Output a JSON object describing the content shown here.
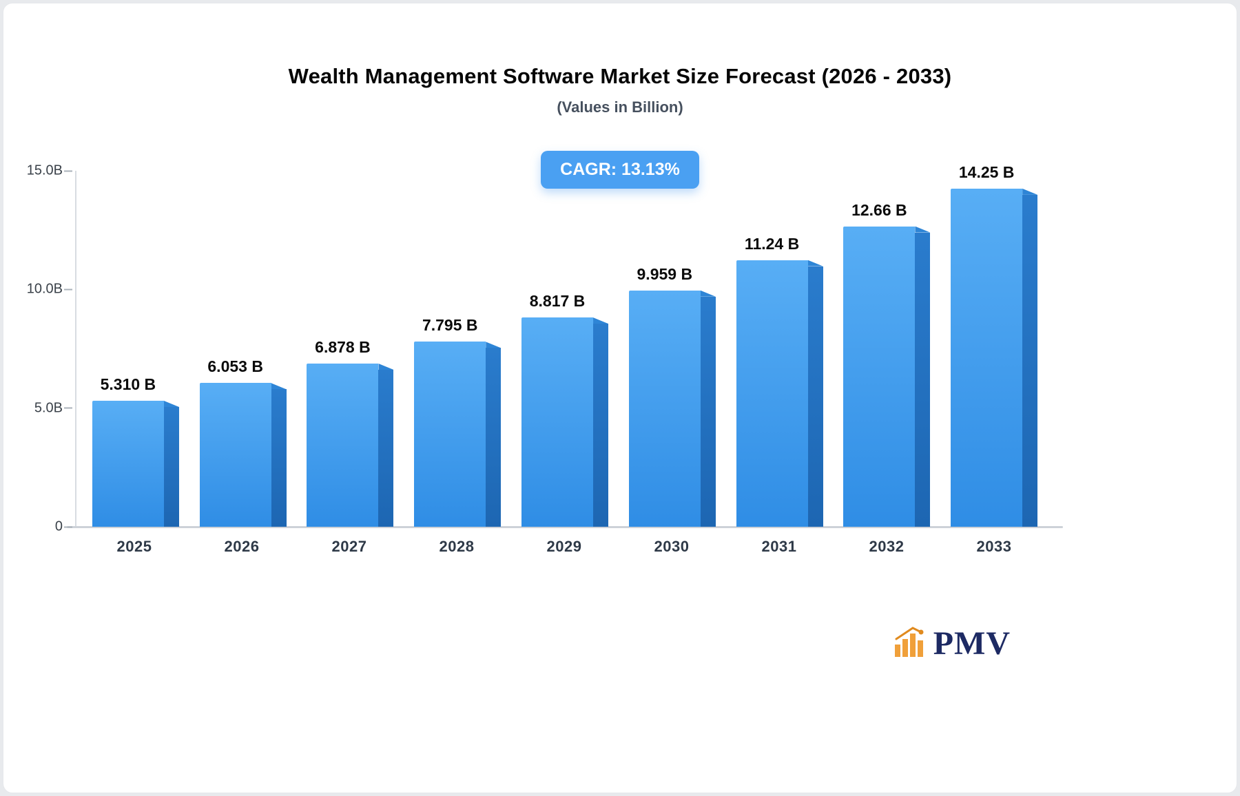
{
  "badge": {
    "label_note": "see chart_data.annotation"
  },
  "colors": {
    "bar_front_top": "#58aef5",
    "bar_front_bottom": "#2f8de5",
    "bar_side_top": "#2a7ccd",
    "bar_side_bottom": "#1d66b2",
    "bar_bevel": "#2e85d6",
    "badge_bg": "#4aa0f2",
    "axis": "#d8dce1",
    "baseline": "#cdd2d8",
    "logo_text_color": "#1d2a63",
    "logo_icon_color": "#f0a03a"
  },
  "logo": {
    "text": "PMV",
    "icon": "bar-chart-icon"
  },
  "chart_data": {
    "type": "bar",
    "title": "Wealth Management Software Market Size Forecast (2026 - 2033)",
    "subtitle": "(Values in Billion)",
    "annotation": "CAGR: 13.13%",
    "categories": [
      "2025",
      "2026",
      "2027",
      "2028",
      "2029",
      "2030",
      "2031",
      "2032",
      "2033"
    ],
    "values": [
      5.31,
      6.053,
      6.878,
      7.795,
      8.817,
      9.959,
      11.24,
      12.66,
      14.25
    ],
    "value_labels": [
      "5.310 B",
      "6.053 B",
      "6.878 B",
      "7.795 B",
      "8.817 B",
      "9.959 B",
      "11.24 B",
      "12.66 B",
      "14.25 B"
    ],
    "xlabel": "",
    "ylabel": "",
    "ylim": [
      0,
      15
    ],
    "yticks": [
      {
        "label": "15.0B",
        "value": 15
      },
      {
        "label": "10.0B",
        "value": 10
      },
      {
        "label": "5.0B",
        "value": 5
      },
      {
        "label": "0",
        "value": 0
      }
    ],
    "grid": "off",
    "legend": "none"
  }
}
